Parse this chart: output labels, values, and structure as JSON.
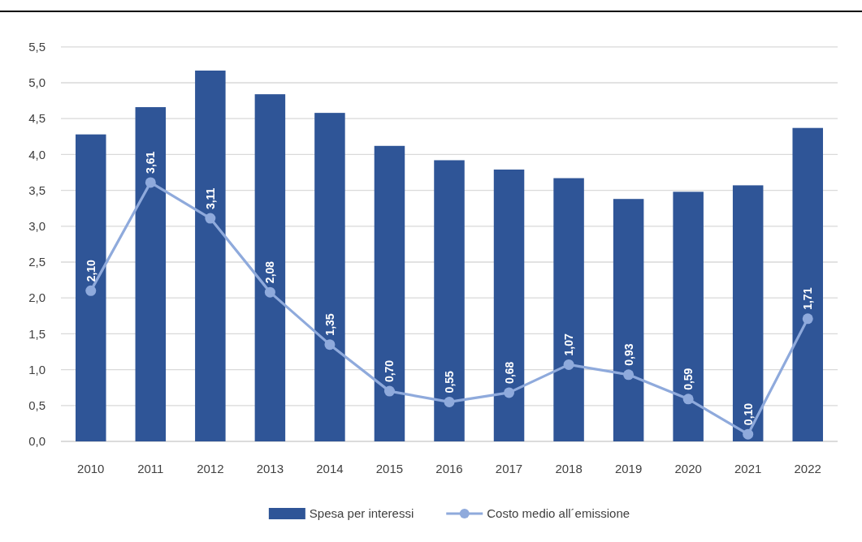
{
  "chart_data": {
    "type": "bar",
    "categories": [
      "2010",
      "2011",
      "2012",
      "2013",
      "2014",
      "2015",
      "2016",
      "2017",
      "2018",
      "2019",
      "2020",
      "2021",
      "2022"
    ],
    "series": [
      {
        "name": "Spesa per interessi",
        "color": "#2f5597",
        "values": [
          4.28,
          4.66,
          5.17,
          4.84,
          4.58,
          4.12,
          3.92,
          3.79,
          3.67,
          3.38,
          3.48,
          3.57,
          4.37
        ]
      },
      {
        "name": "Costo medio all´emissione",
        "type": "line",
        "color": "#8faadc",
        "values": [
          2.1,
          3.61,
          3.11,
          2.08,
          1.35,
          0.7,
          0.55,
          0.68,
          1.07,
          0.93,
          0.59,
          0.1,
          1.71
        ],
        "value_labels": [
          "2,10",
          "3,61",
          "3,11",
          "2,08",
          "1,35",
          "0,70",
          "0,55",
          "0,68",
          "1,07",
          "0,93",
          "0,59",
          "0,10",
          "1,71"
        ]
      }
    ],
    "ylim": [
      0,
      5.5
    ],
    "yticks": [
      {
        "value": 0,
        "label": "0,0"
      },
      {
        "value": 0.5,
        "label": "0,5"
      },
      {
        "value": 1,
        "label": "1,0"
      },
      {
        "value": 1.5,
        "label": "1,5"
      },
      {
        "value": 2,
        "label": "2,0"
      },
      {
        "value": 2.5,
        "label": "2,5"
      },
      {
        "value": 3,
        "label": "3,0"
      },
      {
        "value": 3.5,
        "label": "3,5"
      },
      {
        "value": 4,
        "label": "4,0"
      },
      {
        "value": 4.5,
        "label": "4,5"
      },
      {
        "value": 5,
        "label": "5,0"
      },
      {
        "value": 5.5,
        "label": "5,5"
      }
    ],
    "grid": "y",
    "legend": "bottom",
    "marker": "circle",
    "line_style": "solid"
  }
}
